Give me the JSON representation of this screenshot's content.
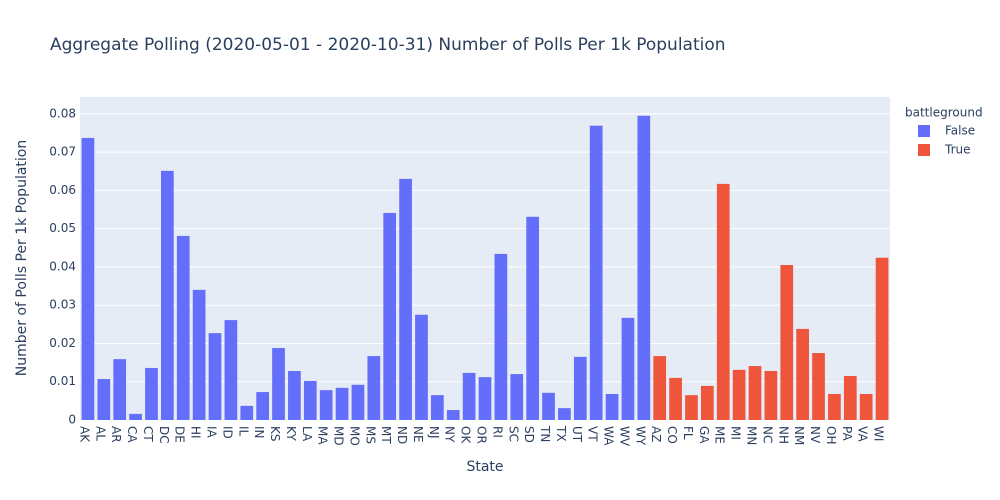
{
  "chart_data": {
    "type": "bar",
    "title": "Aggregate Polling (2020-05-01 - 2020-10-31) Number of Polls Per 1k Population",
    "x_label": "State",
    "y_label": "Number of Polls Per 1k Population",
    "legend_title": "battleground",
    "categories": [
      "AK",
      "AL",
      "AR",
      "CA",
      "CT",
      "DC",
      "DE",
      "HI",
      "IA",
      "ID",
      "IL",
      "IN",
      "KS",
      "KY",
      "LA",
      "MA",
      "MD",
      "MO",
      "MS",
      "MT",
      "ND",
      "NE",
      "NJ",
      "NY",
      "OK",
      "OR",
      "RI",
      "SC",
      "SD",
      "TN",
      "TX",
      "UT",
      "VT",
      "WA",
      "WV",
      "WY",
      "AZ",
      "CO",
      "FL",
      "GA",
      "ME",
      "MI",
      "MN",
      "NC",
      "NH",
      "NM",
      "NV",
      "OH",
      "PA",
      "VA",
      "WI"
    ],
    "series": [
      {
        "name": "False",
        "color": "#636efa",
        "values": [
          0.0737,
          0.0107,
          0.0159,
          0.0016,
          0.0136,
          0.0651,
          0.0481,
          0.034,
          0.0227,
          0.0261,
          0.0037,
          0.0073,
          0.0188,
          0.0128,
          0.0102,
          0.0078,
          0.0084,
          0.0092,
          0.0167,
          0.0541,
          0.063,
          0.0275,
          0.0065,
          0.0026,
          0.0123,
          0.0112,
          0.0434,
          0.012,
          0.0531,
          0.0071,
          0.0031,
          0.0165,
          0.0769,
          0.0068,
          0.0267,
          0.0795,
          null,
          null,
          null,
          null,
          null,
          null,
          null,
          null,
          null,
          null,
          null,
          null,
          null,
          null,
          null
        ]
      },
      {
        "name": "True",
        "color": "#ef553b",
        "values": [
          null,
          null,
          null,
          null,
          null,
          null,
          null,
          null,
          null,
          null,
          null,
          null,
          null,
          null,
          null,
          null,
          null,
          null,
          null,
          null,
          null,
          null,
          null,
          null,
          null,
          null,
          null,
          null,
          null,
          null,
          null,
          null,
          null,
          null,
          null,
          null,
          0.0167,
          0.011,
          0.0065,
          0.0089,
          0.0617,
          0.0131,
          0.0141,
          0.0128,
          0.0405,
          0.0238,
          0.0175,
          0.0068,
          0.0115,
          0.0068,
          0.0424
        ]
      }
    ],
    "ylim": [
      0,
      0.0844
    ],
    "yticks": [
      0,
      0.01,
      0.02,
      0.03,
      0.04,
      0.05,
      0.06,
      0.07,
      0.08
    ],
    "grid": true
  }
}
